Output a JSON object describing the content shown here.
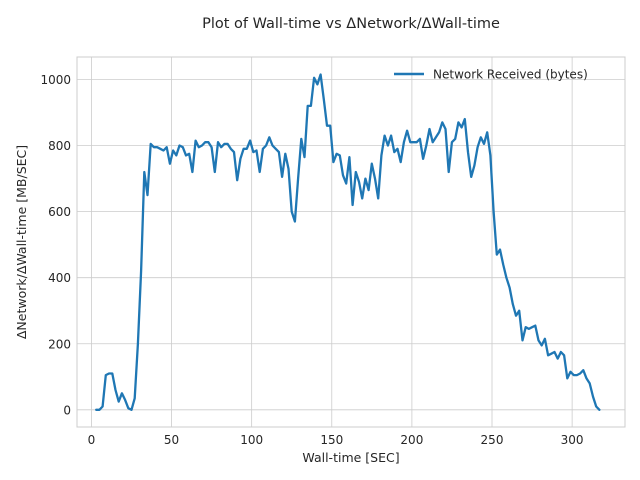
{
  "chart_data": {
    "type": "line",
    "title": "Plot of Wall-time vs ΔNetwork/ΔWall-time",
    "xlabel": "Wall-time [SEC]",
    "ylabel": "ΔNetwork/ΔWall-time [MB/SEC]",
    "xlim": [
      -9,
      333
    ],
    "ylim": [
      -52,
      1068
    ],
    "xticks": [
      0,
      50,
      100,
      150,
      200,
      250,
      300
    ],
    "yticks": [
      0,
      200,
      400,
      600,
      800,
      1000
    ],
    "grid": true,
    "legend_position": "top-right",
    "series": [
      {
        "name": "Network Received (bytes)",
        "color": "#1f77b4",
        "x": [
          3,
          5,
          7,
          9,
          11,
          13,
          15,
          17,
          19,
          21,
          23,
          25,
          27,
          29,
          31,
          32,
          33,
          35,
          37,
          39,
          41,
          43,
          45,
          47,
          49,
          51,
          53,
          55,
          57,
          59,
          61,
          63,
          65,
          67,
          69,
          71,
          73,
          75,
          77,
          79,
          81,
          83,
          85,
          87,
          89,
          91,
          93,
          95,
          97,
          99,
          101,
          103,
          105,
          107,
          109,
          111,
          113,
          115,
          117,
          119,
          121,
          123,
          125,
          127,
          129,
          131,
          133,
          135,
          137,
          139,
          141,
          143,
          145,
          147,
          149,
          151,
          153,
          155,
          157,
          159,
          161,
          163,
          165,
          167,
          169,
          171,
          173,
          175,
          177,
          179,
          181,
          183,
          185,
          187,
          189,
          191,
          193,
          195,
          197,
          199,
          201,
          203,
          205,
          207,
          209,
          211,
          213,
          215,
          217,
          219,
          221,
          223,
          225,
          227,
          229,
          231,
          233,
          235,
          237,
          239,
          241,
          243,
          245,
          247,
          249,
          251,
          253,
          255,
          257,
          259,
          261,
          263,
          265,
          267,
          269,
          271,
          273,
          275,
          277,
          279,
          281,
          283,
          285,
          287,
          289,
          291,
          293,
          295,
          297,
          299,
          301,
          303,
          305,
          307,
          309,
          311,
          313,
          315,
          317
        ],
        "y": [
          0,
          0,
          10,
          105,
          110,
          110,
          60,
          25,
          50,
          30,
          5,
          0,
          35,
          200,
          420,
          570,
          720,
          650,
          805,
          795,
          795,
          790,
          785,
          795,
          745,
          785,
          770,
          800,
          795,
          770,
          775,
          720,
          815,
          795,
          800,
          810,
          810,
          795,
          720,
          810,
          795,
          805,
          805,
          790,
          780,
          695,
          760,
          790,
          790,
          815,
          780,
          785,
          720,
          790,
          800,
          825,
          800,
          790,
          780,
          705,
          775,
          730,
          600,
          570,
          700,
          820,
          765,
          920,
          920,
          1005,
          985,
          1015,
          940,
          860,
          860,
          750,
          775,
          770,
          710,
          685,
          765,
          620,
          720,
          690,
          640,
          700,
          665,
          745,
          700,
          640,
          770,
          830,
          800,
          830,
          780,
          790,
          750,
          810,
          845,
          810,
          810,
          810,
          820,
          760,
          800,
          850,
          810,
          825,
          840,
          870,
          850,
          720,
          810,
          820,
          870,
          855,
          880,
          780,
          705,
          740,
          795,
          825,
          805,
          840,
          770,
          600,
          470,
          485,
          440,
          400,
          370,
          320,
          285,
          300,
          210,
          250,
          245,
          250,
          255,
          210,
          195,
          215,
          165,
          170,
          175,
          155,
          175,
          165,
          95,
          115,
          105,
          105,
          110,
          120,
          95,
          80,
          40,
          10,
          0
        ]
      }
    ]
  }
}
